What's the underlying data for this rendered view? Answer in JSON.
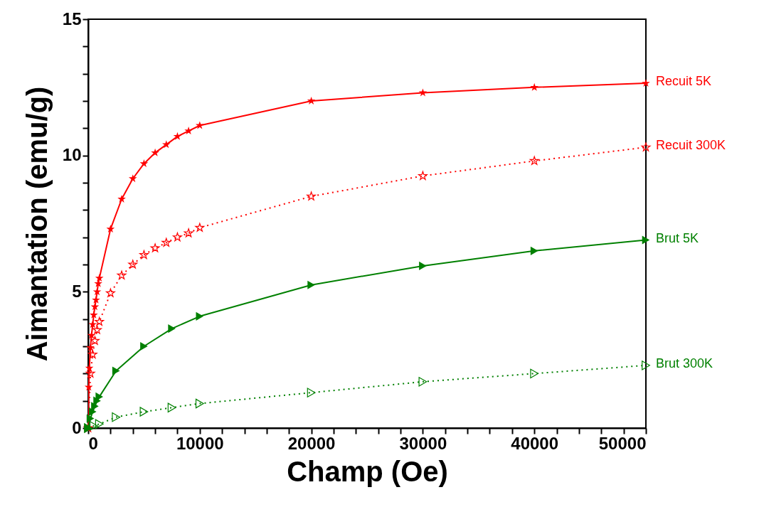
{
  "chart_data": {
    "type": "line",
    "xlabel": "Champ (Oe)",
    "ylabel": "Aimantation (emu/g)",
    "xlim": [
      0,
      50000
    ],
    "ylim": [
      0,
      15
    ],
    "xticks": [
      0,
      {
        "value": 2000,
        "label": null
      },
      {
        "value": 4000,
        "label": null
      },
      {
        "value": 6000,
        "label": null
      },
      {
        "value": 8000,
        "label": null
      },
      10000,
      {
        "value": 12000,
        "label": null
      },
      {
        "value": 14000,
        "label": null
      },
      {
        "value": 16000,
        "label": null
      },
      {
        "value": 18000,
        "label": null
      },
      20000,
      {
        "value": 22000,
        "label": null
      },
      {
        "value": 24000,
        "label": null
      },
      {
        "value": 26000,
        "label": null
      },
      {
        "value": 28000,
        "label": null
      },
      30000,
      {
        "value": 32000,
        "label": null
      },
      {
        "value": 34000,
        "label": null
      },
      {
        "value": 36000,
        "label": null
      },
      {
        "value": 38000,
        "label": null
      },
      40000,
      {
        "value": 42000,
        "label": null
      },
      {
        "value": 44000,
        "label": null
      },
      {
        "value": 46000,
        "label": null
      },
      {
        "value": 48000,
        "label": null
      },
      50000
    ],
    "yticks": [
      0,
      {
        "value": 1,
        "label": null
      },
      {
        "value": 2,
        "label": null
      },
      {
        "value": 3,
        "label": null
      },
      {
        "value": 4,
        "label": null
      },
      5,
      {
        "value": 6,
        "label": null
      },
      {
        "value": 7,
        "label": null
      },
      {
        "value": 8,
        "label": null
      },
      {
        "value": 9,
        "label": null
      },
      10,
      {
        "value": 11,
        "label": null
      },
      {
        "value": 12,
        "label": null
      },
      {
        "value": 13,
        "label": null
      },
      {
        "value": 14,
        "label": null
      },
      15
    ],
    "grid": false,
    "legend": false,
    "series": [
      {
        "name": "Recuit 5K",
        "color": "#ff0000",
        "marker": "star",
        "line_style": "solid",
        "x": [
          0,
          50,
          100,
          200,
          300,
          400,
          500,
          600,
          700,
          800,
          900,
          1000,
          2000,
          3000,
          4000,
          5000,
          6000,
          7000,
          8000,
          9000,
          10000,
          20000,
          30000,
          40000,
          50000
        ],
        "values": [
          0,
          1.5,
          2.2,
          2.95,
          3.4,
          3.8,
          4.15,
          4.45,
          4.7,
          5.0,
          5.3,
          5.5,
          7.3,
          8.4,
          9.15,
          9.7,
          10.1,
          10.4,
          10.7,
          10.9,
          11.1,
          12.0,
          12.3,
          12.5,
          12.65
        ]
      },
      {
        "name": "Recuit 300K",
        "color": "#ff0000",
        "marker": "star",
        "line_style": "dotted",
        "x": [
          0,
          100,
          200,
          400,
          600,
          800,
          1000,
          2000,
          3000,
          4000,
          5000,
          6000,
          7000,
          8000,
          9000,
          10000,
          20000,
          30000,
          40000,
          50000
        ],
        "values": [
          0,
          null,
          2.0,
          2.7,
          3.2,
          3.6,
          3.9,
          4.95,
          5.6,
          6.0,
          6.35,
          6.6,
          6.8,
          7.0,
          7.15,
          7.35,
          8.5,
          9.25,
          9.8,
          10.3
        ]
      },
      {
        "name": "Brut 5K",
        "color": "#008000",
        "marker": "triangle",
        "line_style": "solid",
        "x": [
          0,
          200,
          400,
          600,
          800,
          1000,
          2500,
          5000,
          7500,
          10000,
          20000,
          30000,
          40000,
          50000
        ],
        "values": [
          0,
          0.35,
          0.6,
          0.8,
          1.0,
          1.15,
          2.1,
          3.0,
          3.65,
          4.1,
          5.25,
          5.95,
          6.5,
          6.9
        ]
      },
      {
        "name": "Brut 300K",
        "color": "#008000",
        "marker": "triangle",
        "line_style": "dotted",
        "x": [
          0,
          500,
          1000,
          2500,
          5000,
          7500,
          10000,
          20000,
          30000,
          40000,
          50000
        ],
        "values": [
          0,
          0.08,
          0.15,
          0.4,
          0.6,
          0.75,
          0.9,
          1.3,
          1.7,
          2.0,
          2.3
        ]
      }
    ]
  }
}
